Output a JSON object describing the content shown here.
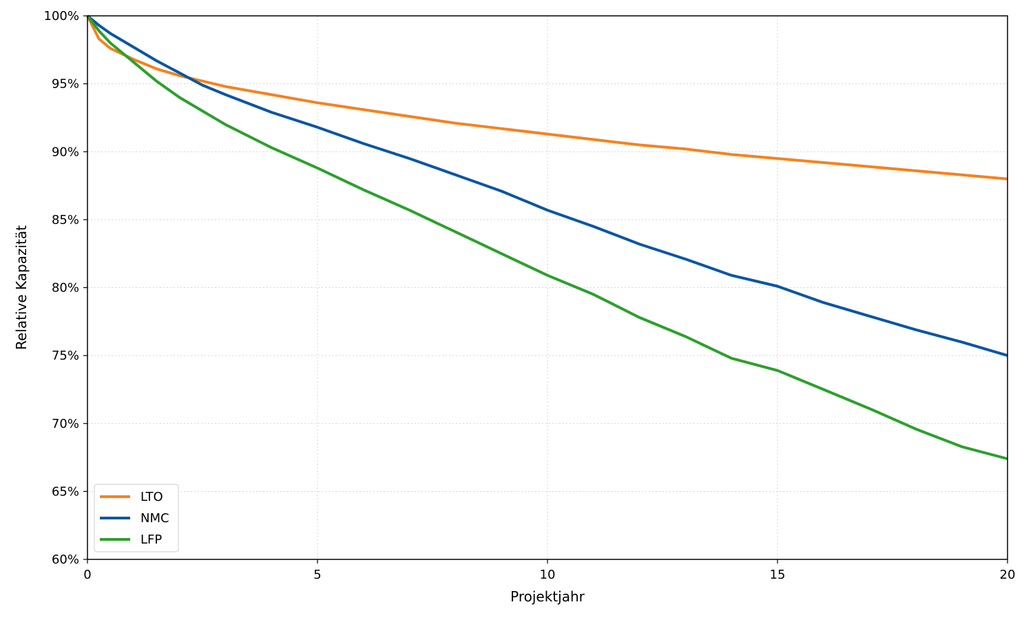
{
  "chart_data": {
    "type": "line",
    "title": "",
    "xlabel": "Projektjahr",
    "ylabel": "Relative Kapazität",
    "xlim": [
      0,
      20
    ],
    "ylim": [
      60,
      100
    ],
    "xticks": [
      0,
      5,
      10,
      15,
      20
    ],
    "yticks": [
      60,
      65,
      70,
      75,
      80,
      85,
      90,
      95,
      100
    ],
    "ytick_suffix": "%",
    "grid": true,
    "legend_position": "lower-left",
    "x": [
      0,
      0.25,
      0.5,
      1,
      1.5,
      2,
      2.5,
      3,
      4,
      5,
      6,
      7,
      8,
      9,
      10,
      11,
      12,
      13,
      14,
      15,
      16,
      17,
      18,
      19,
      20
    ],
    "series": [
      {
        "name": "LTO",
        "color": "#f5821f",
        "values": [
          100,
          98.3,
          97.6,
          96.8,
          96.1,
          95.6,
          95.2,
          94.8,
          94.2,
          93.6,
          93.1,
          92.6,
          92.1,
          91.7,
          91.3,
          90.9,
          90.5,
          90.2,
          89.8,
          89.5,
          89.2,
          88.9,
          88.6,
          88.3,
          88.0
        ]
      },
      {
        "name": "NMC",
        "color": "#0a56a3",
        "values": [
          100,
          99.3,
          98.7,
          97.7,
          96.7,
          95.8,
          94.9,
          94.2,
          92.9,
          91.8,
          90.6,
          89.5,
          88.3,
          87.1,
          85.7,
          84.5,
          83.2,
          82.1,
          80.9,
          80.1,
          78.9,
          77.9,
          76.9,
          76.0,
          75.0
        ]
      },
      {
        "name": "LFP",
        "color": "#2ca02c",
        "values": [
          100,
          98.9,
          98.0,
          96.6,
          95.2,
          94.0,
          93.0,
          92.0,
          90.3,
          88.8,
          87.2,
          85.7,
          84.1,
          82.5,
          80.9,
          79.5,
          77.8,
          76.4,
          74.8,
          73.9,
          72.5,
          71.1,
          69.6,
          68.3,
          67.4
        ]
      }
    ]
  }
}
